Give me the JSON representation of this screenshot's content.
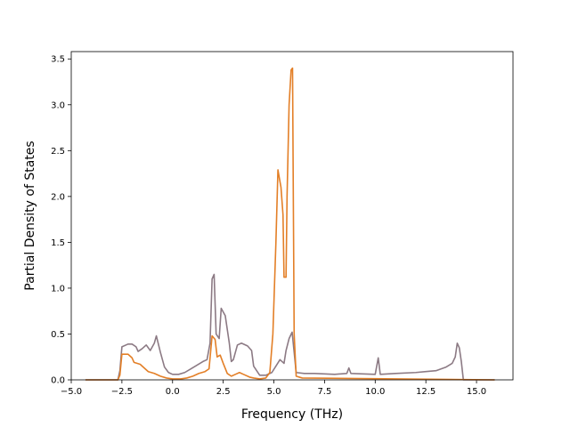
{
  "chart_data": {
    "type": "line",
    "title": "",
    "xlabel": "Frequency (THz)",
    "ylabel": "Partial Density of States",
    "xlim": [
      -5.0,
      16.8
    ],
    "ylim": [
      0.0,
      3.58
    ],
    "xticks": [
      -5.0,
      -2.5,
      0.0,
      2.5,
      5.0,
      7.5,
      10.0,
      12.5,
      15.0
    ],
    "xtick_labels": [
      "−5.0",
      "−2.5",
      "0.0",
      "2.5",
      "5.0",
      "7.5",
      "10.0",
      "12.5",
      "15.0"
    ],
    "yticks": [
      0.0,
      0.5,
      1.0,
      1.5,
      2.0,
      2.5,
      3.0,
      3.5
    ],
    "ytick_labels": [
      "0.0",
      "0.5",
      "1.0",
      "1.5",
      "2.0",
      "2.5",
      "3.0",
      "3.5"
    ],
    "grid": false,
    "legend": null,
    "series": [
      {
        "color": "#8c7a84",
        "points": [
          [
            -4.3,
            0.0
          ],
          [
            -2.7,
            0.0
          ],
          [
            -2.6,
            0.1
          ],
          [
            -2.5,
            0.36
          ],
          [
            -2.2,
            0.39
          ],
          [
            -2.0,
            0.39
          ],
          [
            -1.8,
            0.36
          ],
          [
            -1.7,
            0.31
          ],
          [
            -1.5,
            0.34
          ],
          [
            -1.3,
            0.38
          ],
          [
            -1.1,
            0.32
          ],
          [
            -0.9,
            0.4
          ],
          [
            -0.8,
            0.48
          ],
          [
            -0.6,
            0.3
          ],
          [
            -0.4,
            0.14
          ],
          [
            -0.2,
            0.08
          ],
          [
            0.0,
            0.06
          ],
          [
            0.3,
            0.06
          ],
          [
            0.6,
            0.08
          ],
          [
            0.9,
            0.12
          ],
          [
            1.2,
            0.16
          ],
          [
            1.5,
            0.2
          ],
          [
            1.7,
            0.22
          ],
          [
            1.85,
            0.4
          ],
          [
            1.95,
            1.1
          ],
          [
            2.05,
            1.15
          ],
          [
            2.15,
            0.5
          ],
          [
            2.3,
            0.45
          ],
          [
            2.4,
            0.78
          ],
          [
            2.6,
            0.7
          ],
          [
            2.8,
            0.4
          ],
          [
            2.9,
            0.2
          ],
          [
            3.0,
            0.22
          ],
          [
            3.2,
            0.38
          ],
          [
            3.4,
            0.4
          ],
          [
            3.7,
            0.37
          ],
          [
            3.9,
            0.32
          ],
          [
            4.0,
            0.15
          ],
          [
            4.3,
            0.05
          ],
          [
            4.6,
            0.05
          ],
          [
            4.9,
            0.08
          ],
          [
            5.1,
            0.15
          ],
          [
            5.3,
            0.22
          ],
          [
            5.5,
            0.18
          ],
          [
            5.6,
            0.32
          ],
          [
            5.75,
            0.45
          ],
          [
            5.9,
            0.52
          ],
          [
            6.0,
            0.3
          ],
          [
            6.1,
            0.08
          ],
          [
            6.5,
            0.07
          ],
          [
            7.0,
            0.07
          ],
          [
            8.0,
            0.06
          ],
          [
            8.6,
            0.07
          ],
          [
            8.7,
            0.13
          ],
          [
            8.8,
            0.07
          ],
          [
            10.0,
            0.06
          ],
          [
            10.15,
            0.24
          ],
          [
            10.25,
            0.06
          ],
          [
            11.0,
            0.07
          ],
          [
            12.0,
            0.08
          ],
          [
            12.5,
            0.09
          ],
          [
            13.0,
            0.1
          ],
          [
            13.5,
            0.14
          ],
          [
            13.8,
            0.18
          ],
          [
            13.95,
            0.25
          ],
          [
            14.05,
            0.4
          ],
          [
            14.15,
            0.35
          ],
          [
            14.25,
            0.2
          ],
          [
            14.35,
            0.0
          ],
          [
            15.9,
            0.0
          ]
        ]
      },
      {
        "color": "#e37f27",
        "points": [
          [
            -4.3,
            0.0
          ],
          [
            -2.7,
            0.0
          ],
          [
            -2.6,
            0.05
          ],
          [
            -2.5,
            0.28
          ],
          [
            -2.2,
            0.28
          ],
          [
            -2.0,
            0.24
          ],
          [
            -1.9,
            0.19
          ],
          [
            -1.6,
            0.17
          ],
          [
            -1.4,
            0.13
          ],
          [
            -1.2,
            0.09
          ],
          [
            -0.9,
            0.07
          ],
          [
            -0.6,
            0.04
          ],
          [
            -0.3,
            0.02
          ],
          [
            0.0,
            0.01
          ],
          [
            0.4,
            0.01
          ],
          [
            0.7,
            0.02
          ],
          [
            1.0,
            0.04
          ],
          [
            1.3,
            0.07
          ],
          [
            1.6,
            0.09
          ],
          [
            1.8,
            0.12
          ],
          [
            1.95,
            0.48
          ],
          [
            2.1,
            0.44
          ],
          [
            2.2,
            0.25
          ],
          [
            2.35,
            0.27
          ],
          [
            2.5,
            0.18
          ],
          [
            2.7,
            0.07
          ],
          [
            2.9,
            0.04
          ],
          [
            3.1,
            0.06
          ],
          [
            3.3,
            0.08
          ],
          [
            3.5,
            0.06
          ],
          [
            3.8,
            0.03
          ],
          [
            4.0,
            0.02
          ],
          [
            4.3,
            0.01
          ],
          [
            4.6,
            0.02
          ],
          [
            4.8,
            0.08
          ],
          [
            4.95,
            0.5
          ],
          [
            5.1,
            1.5
          ],
          [
            5.2,
            2.29
          ],
          [
            5.35,
            2.1
          ],
          [
            5.45,
            1.8
          ],
          [
            5.5,
            1.12
          ],
          [
            5.6,
            1.12
          ],
          [
            5.65,
            2.0
          ],
          [
            5.75,
            3.0
          ],
          [
            5.85,
            3.38
          ],
          [
            5.92,
            3.4
          ],
          [
            6.0,
            0.5
          ],
          [
            6.1,
            0.04
          ],
          [
            6.4,
            0.02
          ],
          [
            15.9,
            0.0
          ]
        ]
      }
    ]
  }
}
